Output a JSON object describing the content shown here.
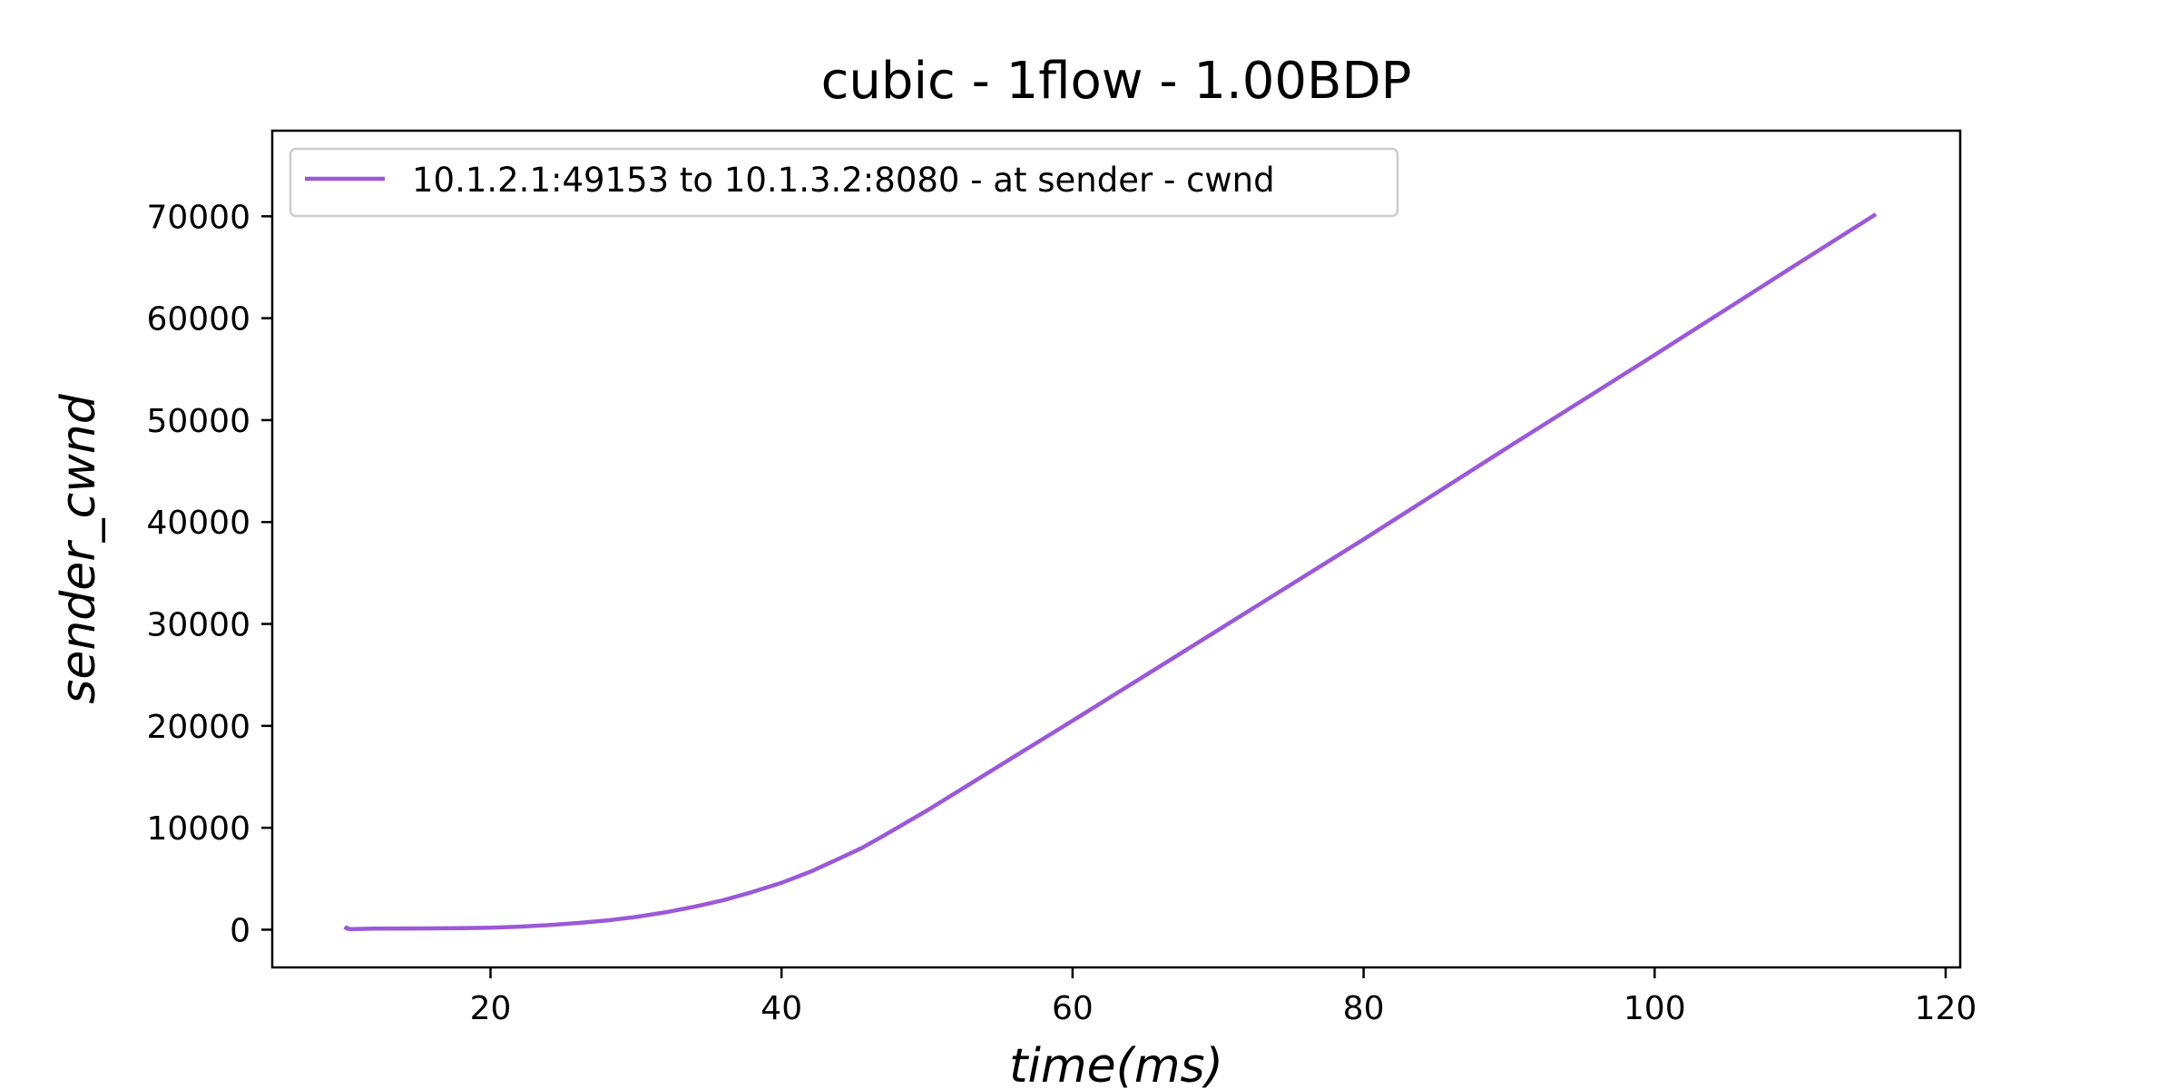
{
  "chart_data": {
    "type": "line",
    "title": "cubic - 1flow - 1.00BDP",
    "xlabel": "time(ms)",
    "ylabel": "sender_cwnd",
    "xlim": [
      5,
      121
    ],
    "ylim": [
      -3700,
      78400
    ],
    "x_ticks": [
      20,
      40,
      60,
      80,
      100,
      120
    ],
    "y_ticks": [
      0,
      10000,
      20000,
      30000,
      40000,
      50000,
      60000,
      70000
    ],
    "grid": false,
    "legend_position": "top-left",
    "series": [
      {
        "name": "10.1.2.1:49153 to 10.1.3.2:8080 - at sender - cwnd",
        "color": "#9b59d8",
        "x": [
          10.0,
          10.1,
          10.3,
          12,
          15,
          18,
          20,
          22,
          24,
          26,
          28,
          30,
          32,
          34,
          36,
          38,
          40,
          42,
          44,
          45.5,
          47,
          50,
          55,
          60,
          70,
          80,
          90,
          100,
          110,
          115.2
        ],
        "y": [
          0,
          200,
          50,
          100,
          120,
          150,
          200,
          300,
          450,
          650,
          900,
          1250,
          1700,
          2250,
          2900,
          3700,
          4600,
          5700,
          7000,
          8000,
          9200,
          11700,
          16100,
          20500,
          29400,
          38300,
          47400,
          56400,
          65500,
          70200
        ]
      }
    ]
  }
}
